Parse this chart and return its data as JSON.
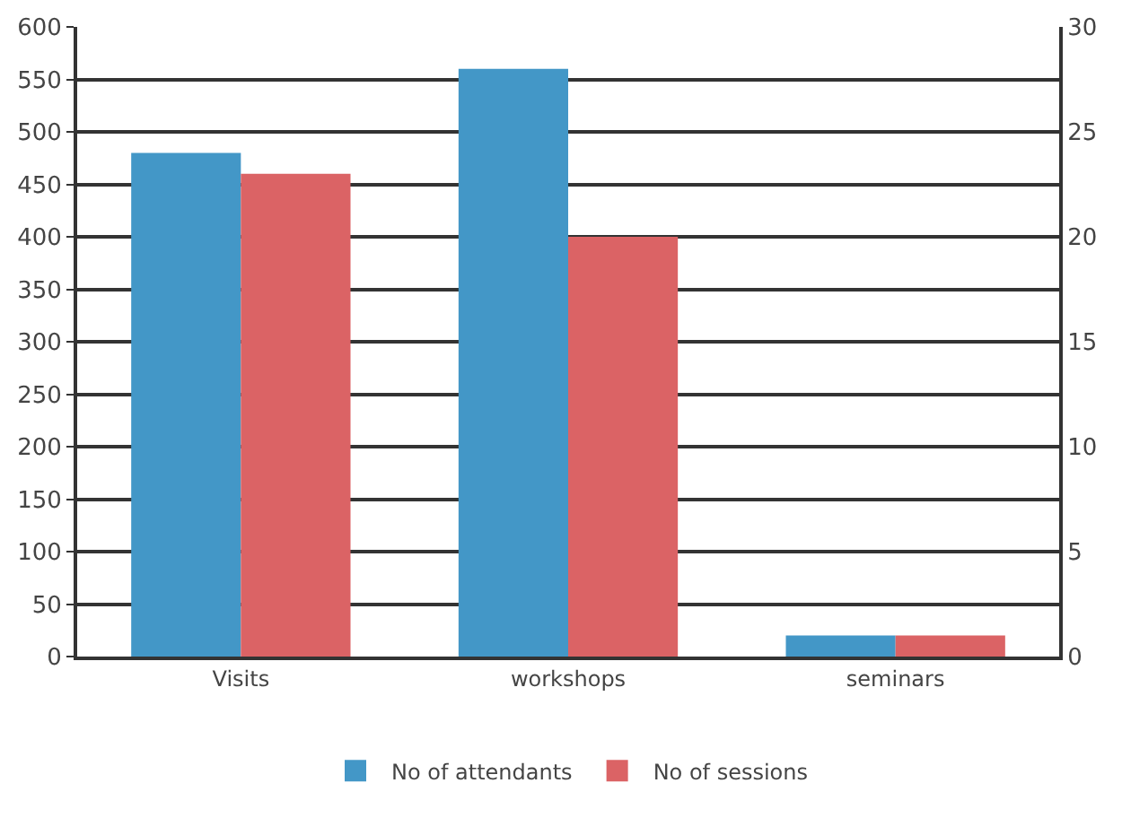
{
  "chart_data": {
    "type": "bar",
    "categories": [
      "Visits",
      "workshops",
      "seminars"
    ],
    "series": [
      {
        "name": "No of attendants",
        "color": "#4397c7",
        "values": [
          480,
          560,
          20
        ]
      },
      {
        "name": "No of sessions",
        "color": "#db6365",
        "values": [
          23,
          20,
          1
        ],
        "axis": "y2"
      }
    ],
    "ylim": [
      0,
      600
    ],
    "yticks": [
      0,
      50,
      100,
      150,
      200,
      250,
      300,
      350,
      400,
      450,
      500,
      550,
      600
    ],
    "y2lim": [
      0,
      30
    ],
    "y2ticks": [
      0,
      5,
      10,
      15,
      20,
      25,
      30
    ],
    "grid": "y",
    "legend": "bottom"
  }
}
